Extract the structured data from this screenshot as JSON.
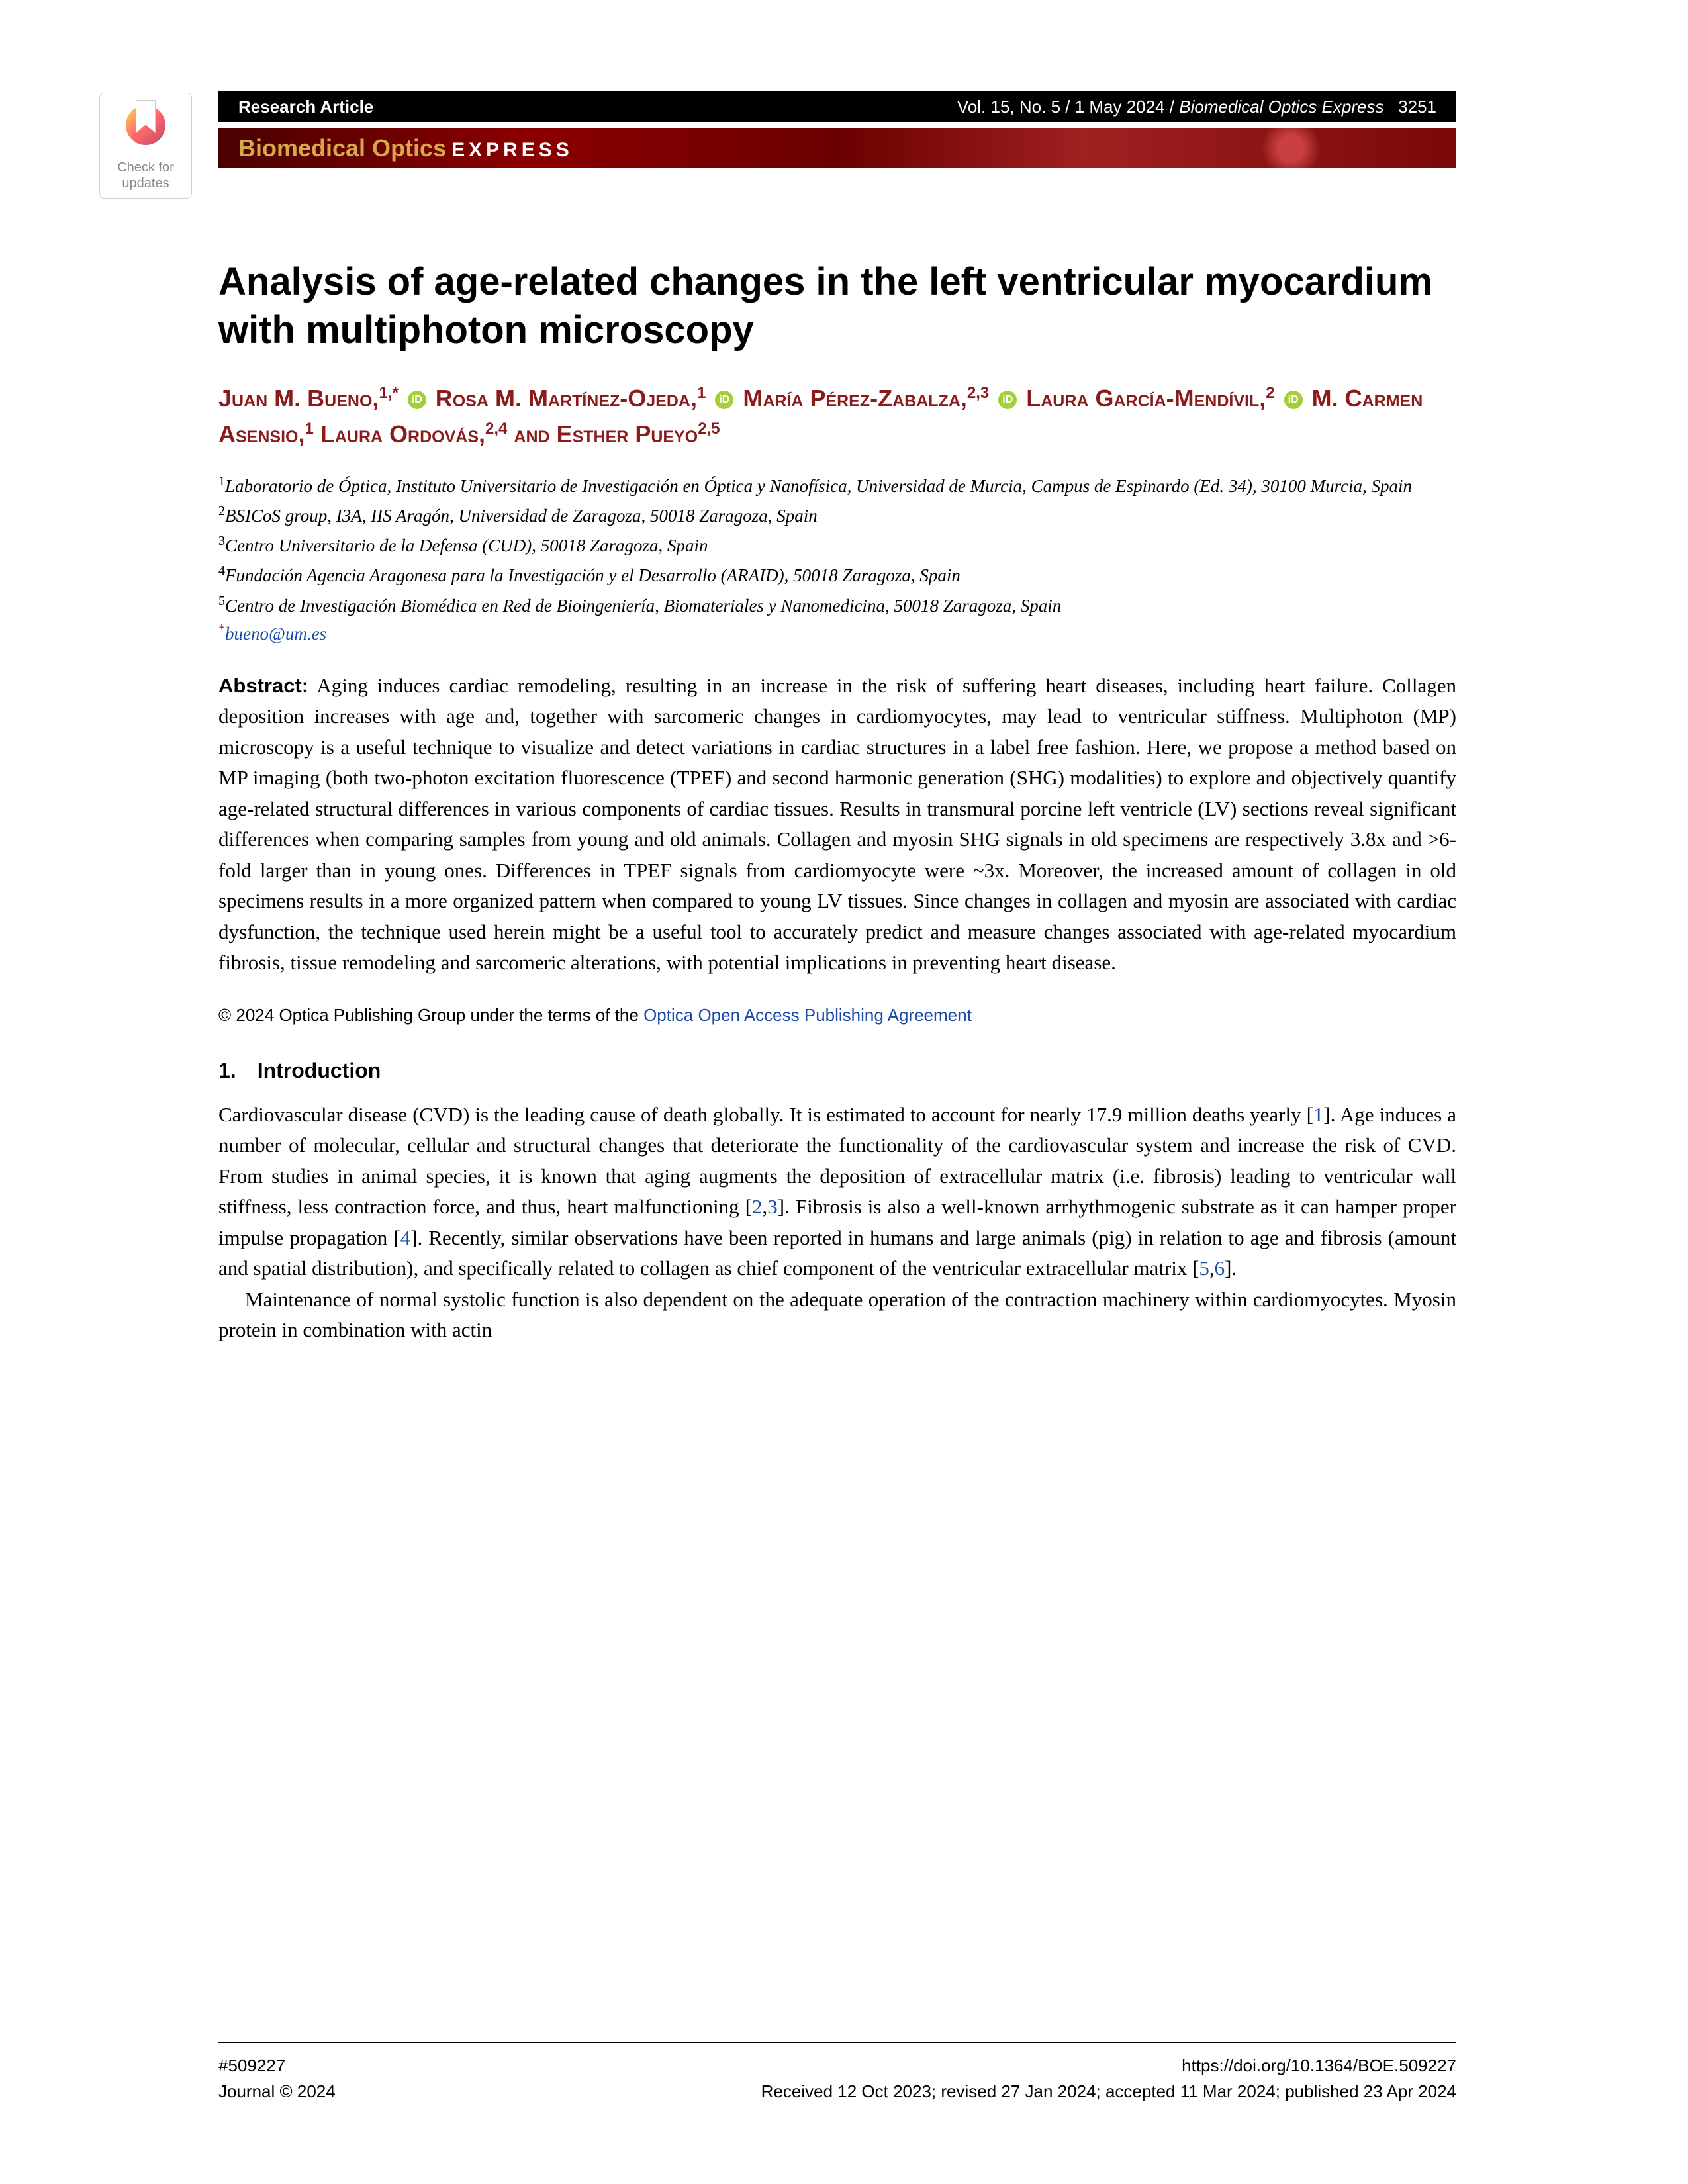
{
  "crossmark": {
    "line1": "Check for",
    "line2": "updates"
  },
  "header": {
    "article_type": "Research Article",
    "volume": "Vol. 15, No. 5 / 1 May 2024 /",
    "journal_italic": "Biomedical Optics Express",
    "page": "3251"
  },
  "banner": {
    "bio": "Biomedical Optics",
    "express": "EXPRESS"
  },
  "title": "Analysis of age-related changes in the left ventricular myocardium with multiphoton microscopy",
  "authors_html": "Juan M. Bueno,<sup>1,*</sup> <span class='orcid'></span> Rosa M. Martínez-Ojeda,<sup>1</sup> <span class='orcid'></span> María Pérez-Zabalza,<sup>2,3</sup> <span class='orcid'></span> Laura García-Mendívil,<sup>2</sup> <span class='orcid'></span> M. Carmen Asensio,<sup>1</sup> Laura Ordovás,<sup>2,4</sup> and Esther Pueyo<sup>2,5</sup>",
  "affiliations": [
    "<sup>1</sup>Laboratorio de Óptica, Instituto Universitario de Investigación en Óptica y Nanofísica, Universidad de Murcia, Campus de Espinardo (Ed. 34), 30100 Murcia, Spain",
    "<sup>2</sup>BSICoS group, I3A, IIS Aragón, Universidad de Zaragoza, 50018 Zaragoza, Spain",
    "<sup>3</sup>Centro Universitario de la Defensa (CUD), 50018 Zaragoza, Spain",
    "<sup>4</sup>Fundación Agencia Aragonesa para la Investigación y el Desarrollo (ARAID), 50018 Zaragoza, Spain",
    "<sup>5</sup>Centro de Investigación Biomédica en Red de Bioingeniería, Biomateriales y Nanomedicina, 50018 Zaragoza, Spain"
  ],
  "email": "bueno@um.es",
  "abstract_label": "Abstract:",
  "abstract": "Aging induces cardiac remodeling, resulting in an increase in the risk of suffering heart diseases, including heart failure. Collagen deposition increases with age and, together with sarcomeric changes in cardiomyocytes, may lead to ventricular stiffness. Multiphoton (MP) microscopy is a useful technique to visualize and detect variations in cardiac structures in a label free fashion. Here, we propose a method based on MP imaging (both two-photon excitation fluorescence (TPEF) and second harmonic generation (SHG) modalities) to explore and objectively quantify age-related structural differences in various components of cardiac tissues. Results in transmural porcine left ventricle (LV) sections reveal significant differences when comparing samples from young and old animals. Collagen and myosin SHG signals in old specimens are respectively 3.8x and >6-fold larger than in young ones. Differences in TPEF signals from cardiomyocyte were ~3x. Moreover, the increased amount of collagen in old specimens results in a more organized pattern when compared to young LV tissues. Since changes in collagen and myosin are associated with cardiac dysfunction, the technique used herein might be a useful tool to accurately predict and measure changes associated with age-related myocardium fibrosis, tissue remodeling and sarcomeric alterations, with potential implications in preventing heart disease.",
  "copyright_text": "© 2024 Optica Publishing Group under the terms of the ",
  "copyright_link": "Optica Open Access Publishing Agreement",
  "section1": {
    "heading": "1. Introduction",
    "para1_pre": "Cardiovascular disease (CVD) is the leading cause of death globally. It is estimated to account for nearly 17.9 million deaths yearly [",
    "ref1": "1",
    "para1_mid1": "]. Age induces a number of molecular, cellular and structural changes that deteriorate the functionality of the cardiovascular system and increase the risk of CVD. From studies in animal species, it is known that aging augments the deposition of extracellular matrix (i.e. fibrosis) leading to ventricular wall stiffness, less contraction force, and thus, heart malfunctioning [",
    "ref2": "2",
    "ref3": "3",
    "para1_mid2": "]. Fibrosis is also a well-known arrhythmogenic substrate as it can hamper proper impulse propagation [",
    "ref4": "4",
    "para1_mid3": "]. Recently, similar observations have been reported in humans and large animals (pig) in relation to age and fibrosis (amount and spatial distribution), and specifically related to collagen as chief component of the ventricular extracellular matrix [",
    "ref5": "5",
    "ref6": "6",
    "para1_end": "].",
    "para2": "Maintenance of normal systolic function is also dependent on the adequate operation of the contraction machinery within cardiomyocytes. Myosin protein in combination with actin"
  },
  "footer": {
    "id": "#509227",
    "journal_copy": "Journal © 2024",
    "doi": "https://doi.org/10.1364/BOE.509227",
    "dates": "Received 12 Oct 2023; revised 27 Jan 2024; accepted 11 Mar 2024; published 23 Apr 2024"
  }
}
